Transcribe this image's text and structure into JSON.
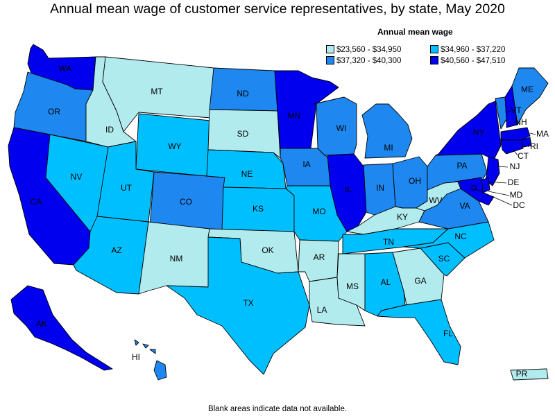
{
  "title": "Annual mean wage of customer service representatives, by state, May 2020",
  "note": "Blank areas indicate data not available.",
  "chart_data": {
    "type": "choropleth",
    "legend": {
      "title": "Annual mean wage",
      "bins": [
        {
          "label": "$23,560 - $34,950",
          "color": "#b2ebee"
        },
        {
          "label": "$34,960 - $37,220",
          "color": "#00bfff"
        },
        {
          "label": "$37,320 - $40,300",
          "color": "#1e87f0"
        },
        {
          "label": "$40,560 - $47,510",
          "color": "#0000ee"
        }
      ]
    },
    "states": {
      "WA": 3,
      "OR": 2,
      "CA": 3,
      "NV": 1,
      "ID": 0,
      "MT": 0,
      "WY": 1,
      "UT": 1,
      "AZ": 1,
      "CO": 2,
      "NM": 0,
      "ND": 2,
      "SD": 0,
      "NE": 1,
      "KS": 1,
      "OK": 0,
      "TX": 1,
      "MN": 3,
      "IA": 2,
      "MO": 1,
      "AR": 0,
      "LA": 0,
      "WI": 2,
      "IL": 3,
      "MI": 2,
      "IN": 2,
      "OH": 2,
      "KY": 0,
      "TN": 1,
      "MS": 0,
      "AL": 1,
      "GA": 0,
      "FL": 1,
      "SC": 1,
      "NC": 1,
      "VA": 2,
      "WV": 0,
      "PA": 2,
      "NY": 3,
      "VT": 2,
      "NH": 3,
      "ME": 2,
      "MA": 3,
      "RI": 3,
      "CT": 3,
      "NJ": 3,
      "DE": 3,
      "MD": 3,
      "DC": 3,
      "AK": 3,
      "HI": 2,
      "PR": 0
    },
    "labels": [
      "WA",
      "OR",
      "CA",
      "NV",
      "ID",
      "MT",
      "WY",
      "UT",
      "AZ",
      "CO",
      "NM",
      "ND",
      "SD",
      "NE",
      "KS",
      "OK",
      "TX",
      "MN",
      "IA",
      "MO",
      "AR",
      "LA",
      "WI",
      "IL",
      "MI",
      "IN",
      "OH",
      "KY",
      "TN",
      "MS",
      "AL",
      "GA",
      "FL",
      "SC",
      "NC",
      "VA",
      "WV",
      "PA",
      "NY",
      "VT",
      "NH",
      "ME",
      "MA",
      "RI",
      "CT",
      "NJ",
      "DE",
      "MD",
      "DC",
      "AK",
      "HI",
      "PR"
    ]
  }
}
